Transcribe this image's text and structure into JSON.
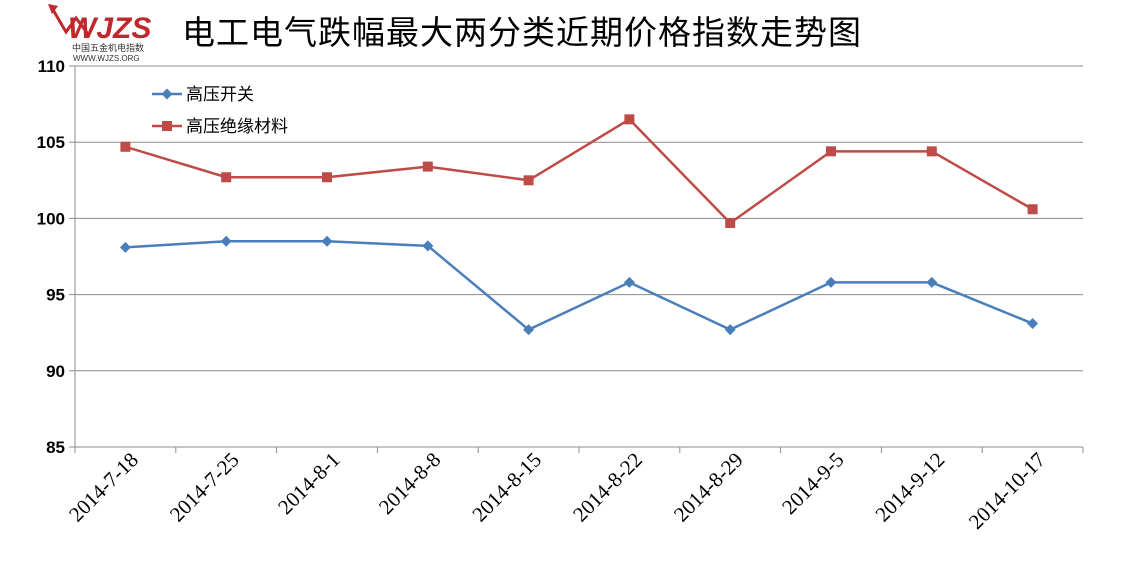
{
  "logo": {
    "mark": "WJZS",
    "subtitle": "中国五金机电指数",
    "url": "WWW.WJZS.ORG",
    "color": "#c0282d"
  },
  "chart_data": {
    "type": "line",
    "title": "电工电气跌幅最大两分类近期价格指数走势图",
    "categories": [
      "2014-7-18",
      "2014-7-25",
      "2014-8-1",
      "2014-8-8",
      "2014-8-15",
      "2014-8-22",
      "2014-8-29",
      "2014-9-5",
      "2014-9-12",
      "2014-10-17"
    ],
    "series": [
      {
        "name": "高压开关",
        "color": "#4a7ebb",
        "marker": "diamond",
        "values": [
          98.1,
          98.5,
          98.5,
          98.2,
          92.7,
          95.8,
          92.7,
          95.8,
          95.8,
          93.1
        ]
      },
      {
        "name": "高压绝缘材料",
        "color": "#be4b48",
        "marker": "square",
        "values": [
          104.7,
          102.7,
          102.7,
          103.4,
          102.5,
          106.5,
          99.7,
          104.4,
          104.4,
          100.6
        ]
      }
    ],
    "ylim": [
      85,
      110
    ],
    "yticks": [
      85,
      90,
      95,
      100,
      105,
      110
    ],
    "grid": true,
    "legend_position": "top-left"
  }
}
